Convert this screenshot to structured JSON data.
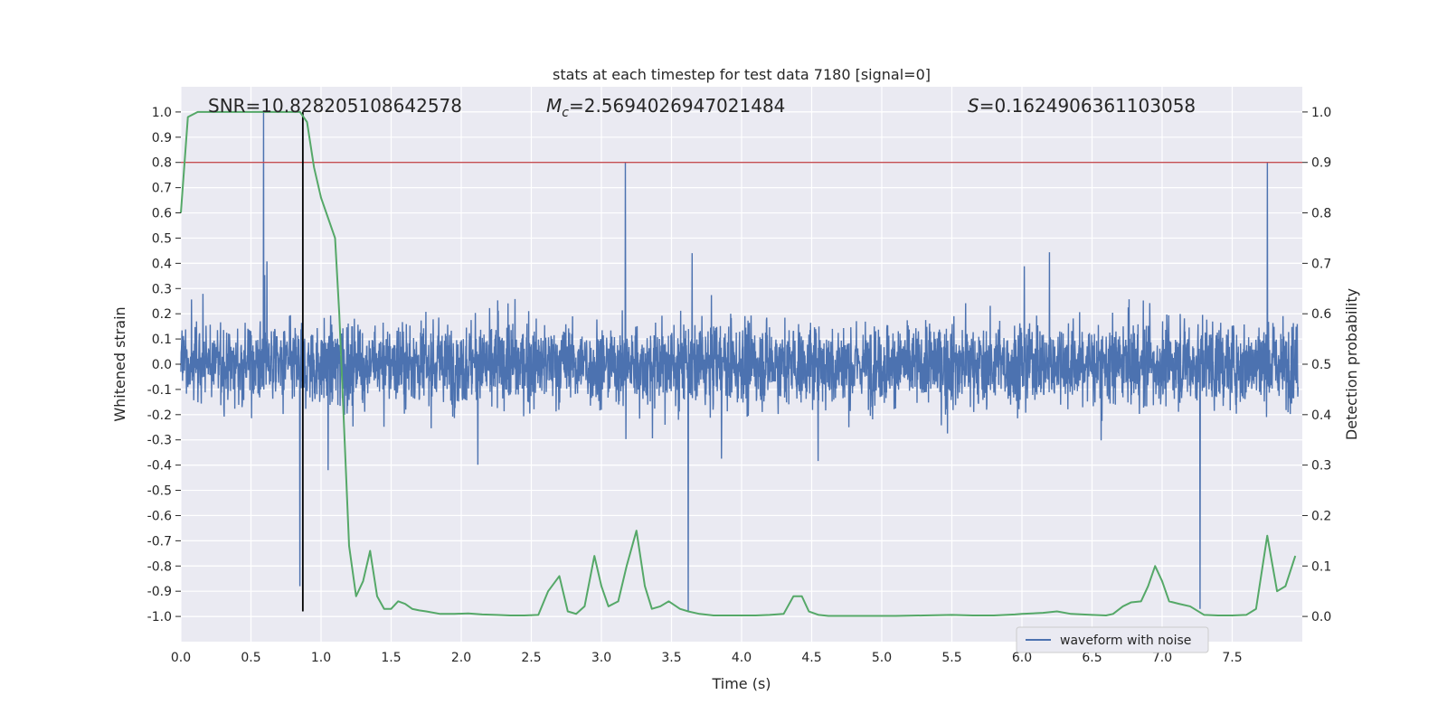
{
  "chart_data": {
    "type": "line",
    "title": "stats at each timestep for test data 7180 [signal=0]",
    "xlabel": "Time (s)",
    "ylabel": "Whitened strain",
    "ylabel_right": "Detection probability",
    "xlim": [
      0.0,
      8.0
    ],
    "ylim": [
      -1.1,
      1.1
    ],
    "ylim_right": [
      -0.05,
      1.05
    ],
    "xticks": [
      "0.0",
      "0.5",
      "1.0",
      "1.5",
      "2.0",
      "2.5",
      "3.0",
      "3.5",
      "4.0",
      "4.5",
      "5.0",
      "5.5",
      "6.0",
      "6.5",
      "7.0",
      "7.5"
    ],
    "yticks": [
      "-1.0",
      "-0.9",
      "-0.8",
      "-0.7",
      "-0.6",
      "-0.5",
      "-0.4",
      "-0.3",
      "-0.2",
      "-0.1",
      "0.0",
      "0.1",
      "0.2",
      "0.3",
      "0.4",
      "0.5",
      "0.6",
      "0.7",
      "0.8",
      "0.9",
      "1.0"
    ],
    "yticks_right": [
      "0.0",
      "0.1",
      "0.2",
      "0.3",
      "0.4",
      "0.5",
      "0.6",
      "0.7",
      "0.8",
      "0.9",
      "1.0"
    ],
    "grid": true,
    "annotations": {
      "snr": "SNR=10.828205108642578",
      "mc_symbol": "M",
      "mc_sub": "c",
      "mc_value": "=2.5694026947021484",
      "s_symbol": "S",
      "s_value": "=0.1624906361103058"
    },
    "threshold_y": 0.8,
    "event_time_x": 0.87,
    "legend": {
      "label": "waveform with noise",
      "placement": "lower-right"
    },
    "waveform": {
      "name": "waveform with noise",
      "note_envelope": "dense noise, typical amplitude about ±0.35 with peaks up to ±1.0",
      "peaks": [
        {
          "x": 0.59,
          "y": 1.0
        },
        {
          "x": 0.85,
          "y": -0.88
        },
        {
          "x": 3.17,
          "y": 0.8
        },
        {
          "x": 3.62,
          "y": -0.98
        },
        {
          "x": 7.75,
          "y": 0.8
        },
        {
          "x": 7.27,
          "y": -0.97
        },
        {
          "x": 1.05,
          "y": -0.42
        }
      ]
    },
    "probability": {
      "x": [
        0.0,
        0.05,
        0.12,
        0.2,
        0.3,
        0.4,
        0.5,
        0.6,
        0.7,
        0.8,
        0.85,
        0.9,
        0.95,
        1.0,
        1.05,
        1.1,
        1.13,
        1.2,
        1.25,
        1.3,
        1.35,
        1.4,
        1.45,
        1.5,
        1.55,
        1.6,
        1.65,
        1.7,
        1.75,
        1.85,
        1.95,
        2.05,
        2.15,
        2.25,
        2.35,
        2.45,
        2.55,
        2.62,
        2.7,
        2.76,
        2.82,
        2.88,
        2.95,
        3.0,
        3.05,
        3.12,
        3.18,
        3.25,
        3.31,
        3.36,
        3.42,
        3.48,
        3.56,
        3.62,
        3.7,
        3.8,
        3.9,
        4.0,
        4.1,
        4.2,
        4.3,
        4.37,
        4.43,
        4.48,
        4.55,
        4.62,
        4.75,
        4.9,
        5.1,
        5.3,
        5.5,
        5.65,
        5.8,
        5.95,
        6.0,
        6.15,
        6.25,
        6.35,
        6.5,
        6.6,
        6.65,
        6.72,
        6.78,
        6.85,
        6.9,
        6.95,
        7.0,
        7.05,
        7.12,
        7.2,
        7.3,
        7.4,
        7.5,
        7.6,
        7.67,
        7.75,
        7.82,
        7.88,
        7.95
      ],
      "y": [
        0.8,
        0.99,
        1.0,
        1.0,
        1.0,
        1.0,
        1.0,
        1.0,
        1.0,
        1.0,
        1.0,
        0.98,
        0.89,
        0.83,
        0.79,
        0.75,
        0.6,
        0.14,
        0.04,
        0.07,
        0.13,
        0.04,
        0.015,
        0.015,
        0.03,
        0.025,
        0.015,
        0.012,
        0.01,
        0.005,
        0.005,
        0.006,
        0.004,
        0.003,
        0.002,
        0.002,
        0.003,
        0.05,
        0.08,
        0.01,
        0.005,
        0.02,
        0.12,
        0.06,
        0.02,
        0.03,
        0.1,
        0.17,
        0.06,
        0.015,
        0.02,
        0.03,
        0.015,
        0.01,
        0.005,
        0.002,
        0.002,
        0.002,
        0.002,
        0.003,
        0.005,
        0.04,
        0.04,
        0.01,
        0.003,
        0.001,
        0.001,
        0.001,
        0.001,
        0.002,
        0.003,
        0.002,
        0.002,
        0.004,
        0.005,
        0.007,
        0.01,
        0.005,
        0.003,
        0.002,
        0.005,
        0.02,
        0.028,
        0.03,
        0.06,
        0.1,
        0.07,
        0.03,
        0.025,
        0.02,
        0.003,
        0.002,
        0.002,
        0.003,
        0.015,
        0.16,
        0.05,
        0.06,
        0.12
      ]
    },
    "colors": {
      "background": "#eaeaf2",
      "grid": "#ffffff",
      "waveform": "#4c72b0",
      "probability": "#55a868",
      "threshold": "#c44e52",
      "event_line": "#000000",
      "text": "#262626"
    }
  }
}
